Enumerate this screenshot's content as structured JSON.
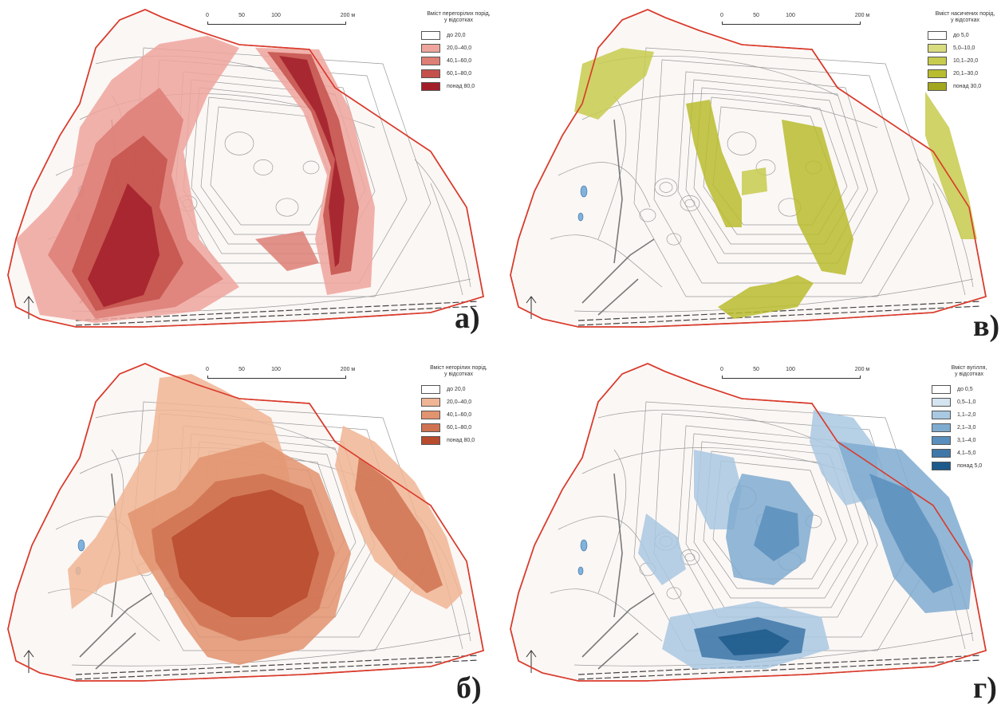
{
  "scale_bar": {
    "ticks": [
      "0",
      "50",
      "100",
      "200 м"
    ]
  },
  "panels": [
    {
      "id": "a",
      "label": "а)",
      "legend_title": "Вміст перегорілих порід,\nу відсотках",
      "legend": [
        {
          "label": "до 20,0",
          "color": "#ffffff"
        },
        {
          "label": "20,0–40,0",
          "color": "#eea59d"
        },
        {
          "label": "40,1–60,0",
          "color": "#dd7f75"
        },
        {
          "label": "60,1–80,0",
          "color": "#c4514b"
        },
        {
          "label": "понад 80,0",
          "color": "#a21f2a"
        }
      ]
    },
    {
      "id": "v",
      "label": "в)",
      "legend_title": "Вміст насичених порід,\nу відсотках",
      "legend": [
        {
          "label": "до 5,0",
          "color": "#ffffff"
        },
        {
          "label": "5,0–10,0",
          "color": "#d8dc7e"
        },
        {
          "label": "10,1–20,0",
          "color": "#c7cb4e"
        },
        {
          "label": "20,1–30,0",
          "color": "#b8bc2e"
        },
        {
          "label": "понад 30,0",
          "color": "#a3a71f"
        }
      ]
    },
    {
      "id": "b",
      "label": "б)",
      "legend_title": "Вміст негорілих порід,\nу відсотках",
      "legend": [
        {
          "label": "до 20,0",
          "color": "#ffffff"
        },
        {
          "label": "20,0–40,0",
          "color": "#f0b594"
        },
        {
          "label": "40,1–60,0",
          "color": "#e2936f"
        },
        {
          "label": "60,1–80,0",
          "color": "#cf7252"
        },
        {
          "label": "понад 80,0",
          "color": "#b84a2e"
        }
      ]
    },
    {
      "id": "g",
      "label": "г)",
      "legend_title": "Вміст вугілля,\nу відсотках",
      "legend": [
        {
          "label": "до 0,5",
          "color": "#ffffff"
        },
        {
          "label": "0,5–1,0",
          "color": "#d4e4f0"
        },
        {
          "label": "1,1–2,0",
          "color": "#a9c8e2"
        },
        {
          "label": "2,1–3,0",
          "color": "#80abd0"
        },
        {
          "label": "3,1–4,0",
          "color": "#5a8fbd"
        },
        {
          "label": "4,1–5,0",
          "color": "#3f77a8"
        },
        {
          "label": "понад 5,0",
          "color": "#1d5a8c"
        }
      ]
    }
  ],
  "colors": {
    "boundary": "#d93a2b",
    "contour": "#9a9a9a",
    "road": "#7a7a7a",
    "water": "#7fb2dd"
  }
}
